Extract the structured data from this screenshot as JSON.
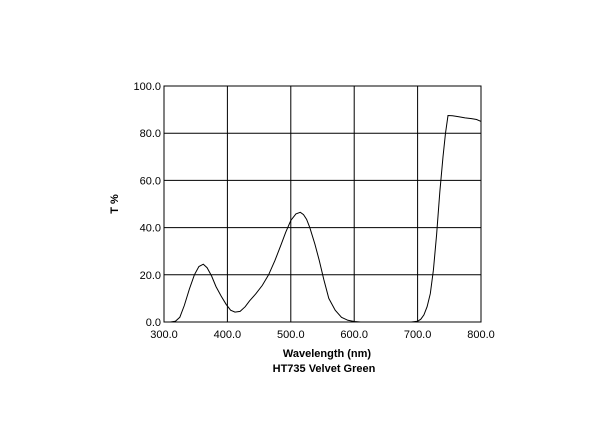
{
  "chart_data": {
    "type": "line",
    "title": "HT735 Velvet Green",
    "xlabel": "Wavelength (nm)",
    "ylabel": "T %",
    "xlim": [
      300,
      800
    ],
    "ylim": [
      0,
      100
    ],
    "grid": true,
    "x_ticks": [
      "300.0",
      "400.0",
      "500.0",
      "600.0",
      "700.0",
      "800.0"
    ],
    "y_ticks": [
      "0.0",
      "20.0",
      "40.0",
      "60.0",
      "80.0",
      "100.0"
    ],
    "series": [
      {
        "color": "#000000",
        "x": [
          300,
          310,
          318,
          325,
          332,
          340,
          348,
          355,
          362,
          368,
          375,
          382,
          390,
          398,
          405,
          412,
          420,
          428,
          435,
          445,
          455,
          465,
          475,
          485,
          492,
          500,
          508,
          515,
          520,
          525,
          530,
          538,
          545,
          552,
          560,
          570,
          580,
          590,
          600,
          610,
          620,
          630,
          640,
          650,
          660,
          670,
          680,
          690,
          700,
          705,
          710,
          715,
          720,
          725,
          730,
          735,
          740,
          744,
          748,
          755,
          765,
          775,
          785,
          793,
          800
        ],
        "y": [
          0.0,
          0.0,
          0.3,
          2.0,
          7.0,
          14.0,
          20.0,
          23.5,
          24.5,
          23.0,
          19.5,
          15.0,
          11.0,
          7.5,
          5.0,
          4.2,
          4.5,
          6.5,
          9.0,
          12.0,
          15.5,
          20.0,
          26.0,
          33.0,
          38.0,
          43.0,
          45.8,
          46.5,
          45.5,
          43.5,
          40.0,
          33.0,
          26.0,
          18.0,
          10.0,
          5.0,
          2.0,
          0.7,
          0.2,
          0.0,
          0.0,
          0.0,
          0.0,
          0.0,
          0.0,
          0.0,
          0.0,
          0.0,
          0.3,
          1.2,
          3.0,
          6.5,
          12.0,
          22.0,
          37.0,
          55.0,
          70.0,
          80.0,
          87.5,
          87.4,
          87.0,
          86.5,
          86.2,
          85.8,
          85.0
        ]
      }
    ]
  }
}
